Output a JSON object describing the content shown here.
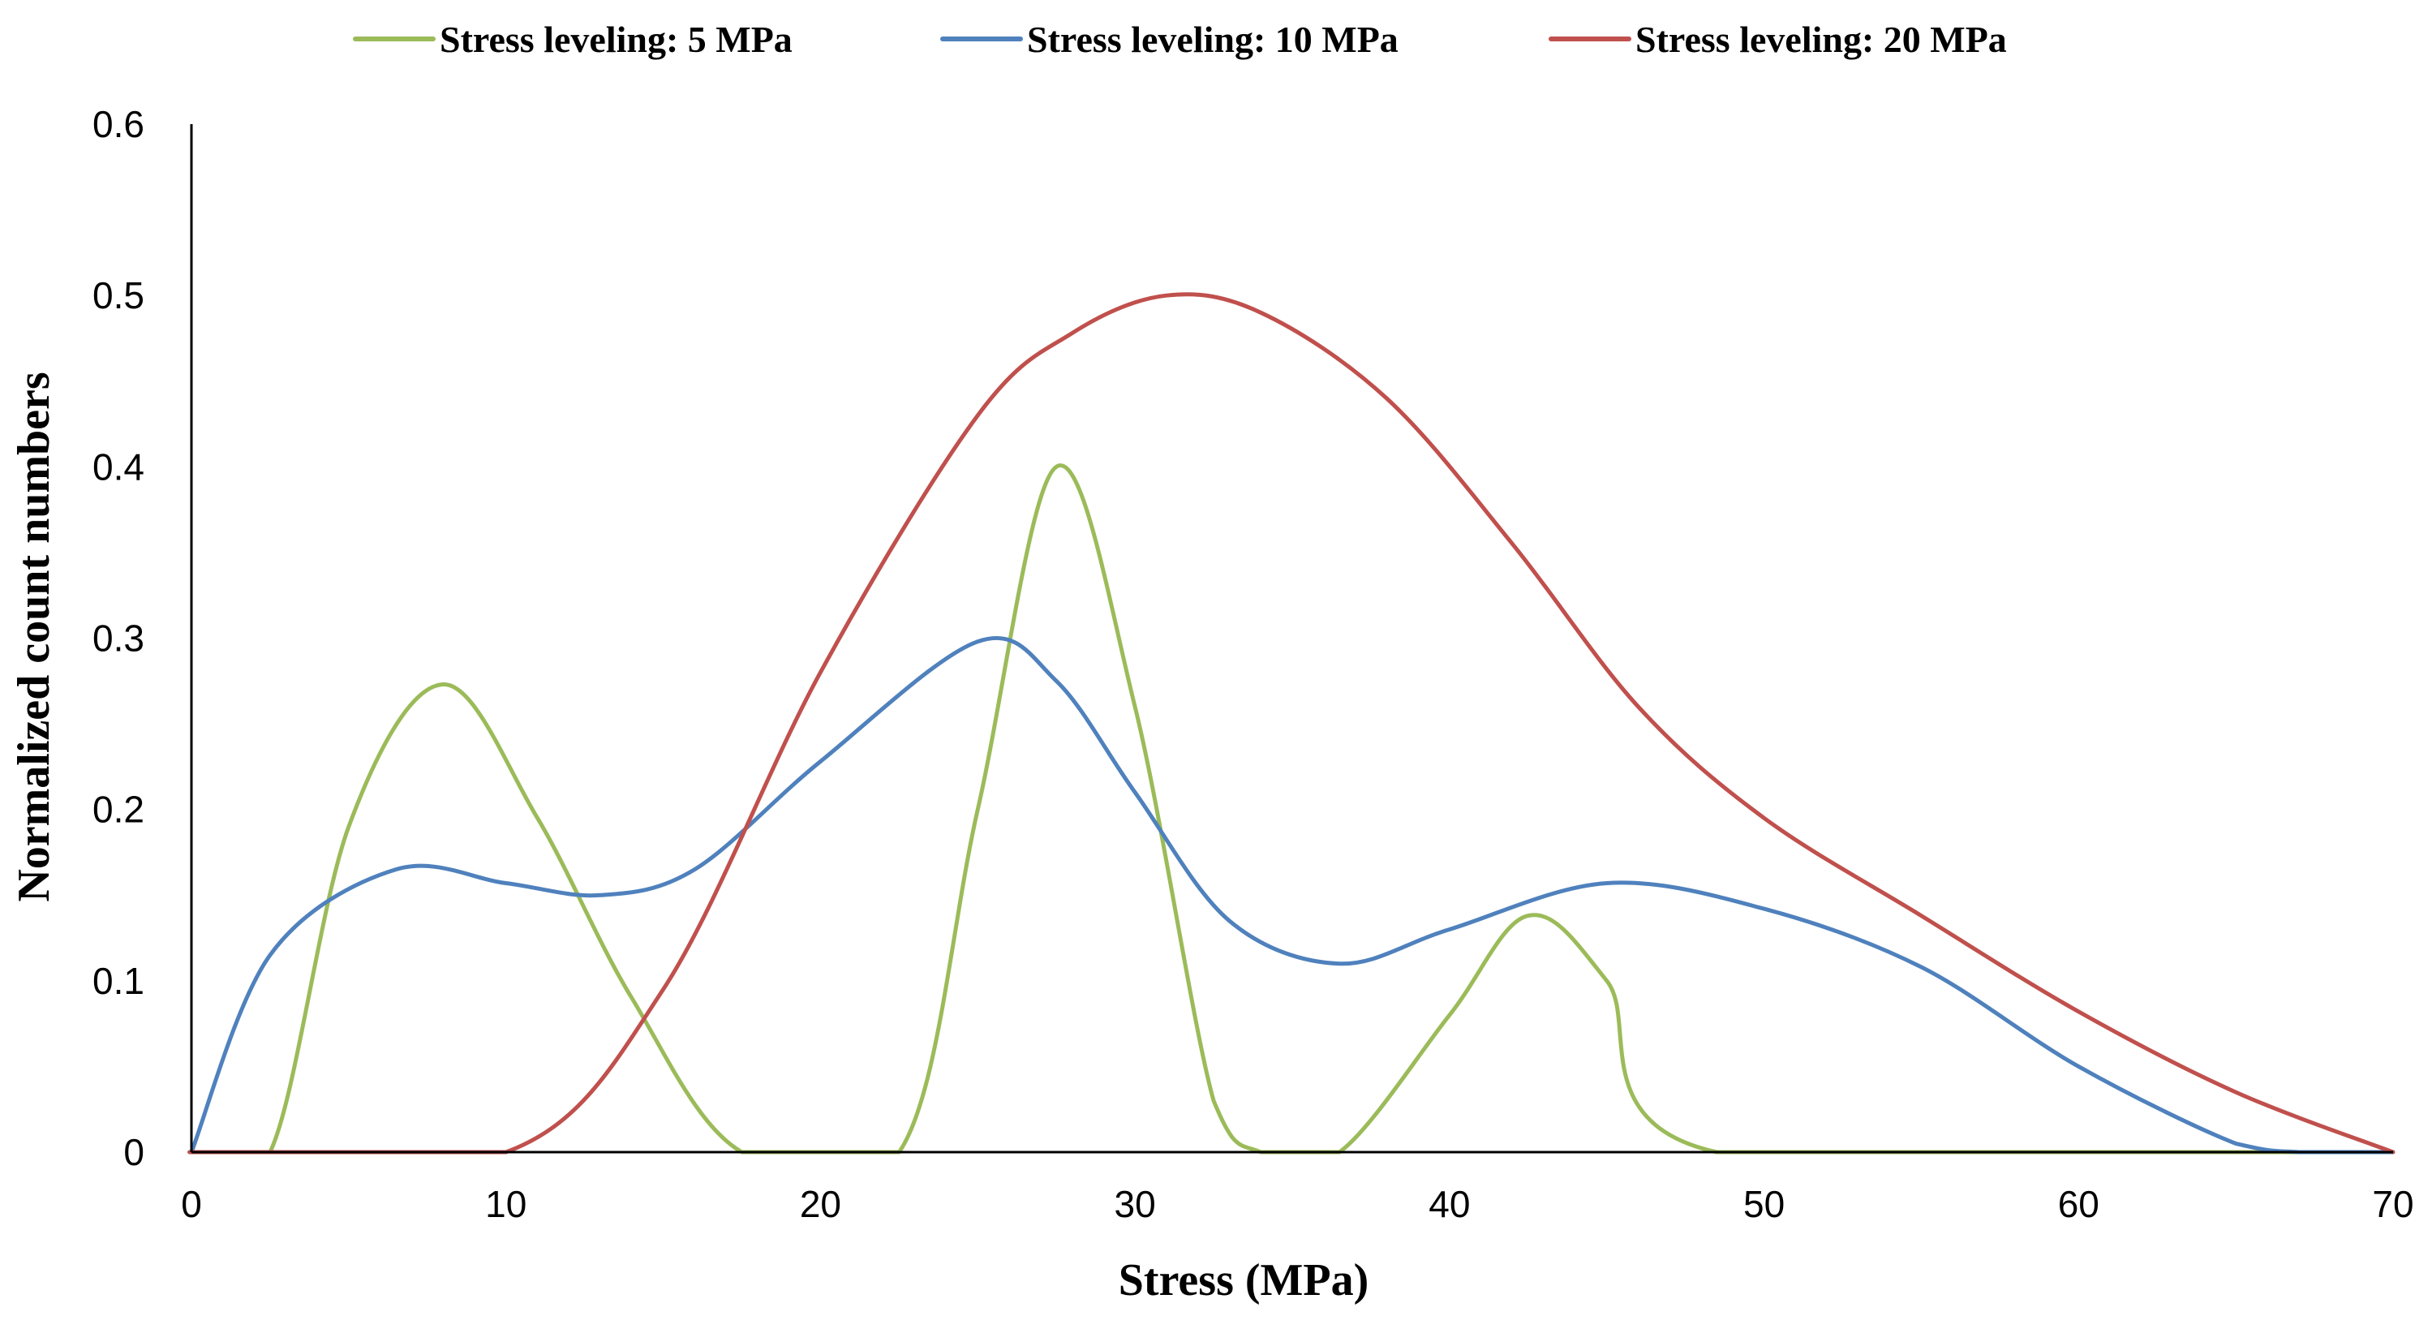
{
  "chart_data": {
    "type": "line",
    "title": "",
    "xlabel": "Stress (MPa)",
    "ylabel": "Normalized count numbers",
    "xlim": [
      0,
      70
    ],
    "ylim": [
      0,
      0.6
    ],
    "x_ticks": [
      0,
      10,
      20,
      30,
      40,
      50,
      60,
      70
    ],
    "y_ticks": [
      0,
      0.1,
      0.2,
      0.3,
      0.4,
      0.5,
      0.6
    ],
    "x_tick_labels": [
      "0",
      "10",
      "20",
      "30",
      "40",
      "50",
      "60",
      "70"
    ],
    "y_tick_labels": [
      "0",
      "0.1",
      "0.2",
      "0.3",
      "0.4",
      "0.5",
      "0.6"
    ],
    "grid": false,
    "legend_position": "top-center",
    "series": [
      {
        "name": "Stress leveling: 5 MPa",
        "color": "#9bbb59",
        "points": [
          [
            0,
            0
          ],
          [
            2.5,
            0
          ],
          [
            5,
            0.19
          ],
          [
            8,
            0.273
          ],
          [
            11,
            0.195
          ],
          [
            14,
            0.09
          ],
          [
            17.5,
            0
          ],
          [
            22.5,
            0
          ],
          [
            25,
            0.2
          ],
          [
            27.5,
            0.4
          ],
          [
            30,
            0.26
          ],
          [
            32.5,
            0.03
          ],
          [
            34,
            0
          ],
          [
            36.5,
            0
          ],
          [
            40,
            0.08
          ],
          [
            42.5,
            0.138
          ],
          [
            45,
            0.1
          ],
          [
            48.5,
            0
          ],
          [
            70,
            0
          ]
        ]
      },
      {
        "name": "Stress leveling: 10 MPa",
        "color": "#4f81bd",
        "points": [
          [
            0,
            0
          ],
          [
            2.5,
            0.115
          ],
          [
            6.5,
            0.165
          ],
          [
            10,
            0.157
          ],
          [
            13,
            0.15
          ],
          [
            16,
            0.165
          ],
          [
            20,
            0.228
          ],
          [
            25,
            0.298
          ],
          [
            27.5,
            0.275
          ],
          [
            30,
            0.21
          ],
          [
            33,
            0.135
          ],
          [
            36.5,
            0.11
          ],
          [
            40,
            0.13
          ],
          [
            45,
            0.157
          ],
          [
            50,
            0.142
          ],
          [
            55,
            0.108
          ],
          [
            60,
            0.05
          ],
          [
            65,
            0.005
          ],
          [
            67,
            0
          ],
          [
            70,
            0
          ]
        ]
      },
      {
        "name": "Stress leveling: 20 MPa",
        "color": "#c0504d",
        "points": [
          [
            0,
            0
          ],
          [
            1,
            0
          ],
          [
            10,
            0
          ],
          [
            15,
            0.095
          ],
          [
            20,
            0.28
          ],
          [
            25,
            0.43
          ],
          [
            28,
            0.478
          ],
          [
            31,
            0.5
          ],
          [
            34,
            0.49
          ],
          [
            38,
            0.44
          ],
          [
            42,
            0.355
          ],
          [
            46,
            0.26
          ],
          [
            50,
            0.195
          ],
          [
            55,
            0.138
          ],
          [
            60,
            0.082
          ],
          [
            65,
            0.035
          ],
          [
            70,
            0
          ]
        ]
      }
    ]
  }
}
